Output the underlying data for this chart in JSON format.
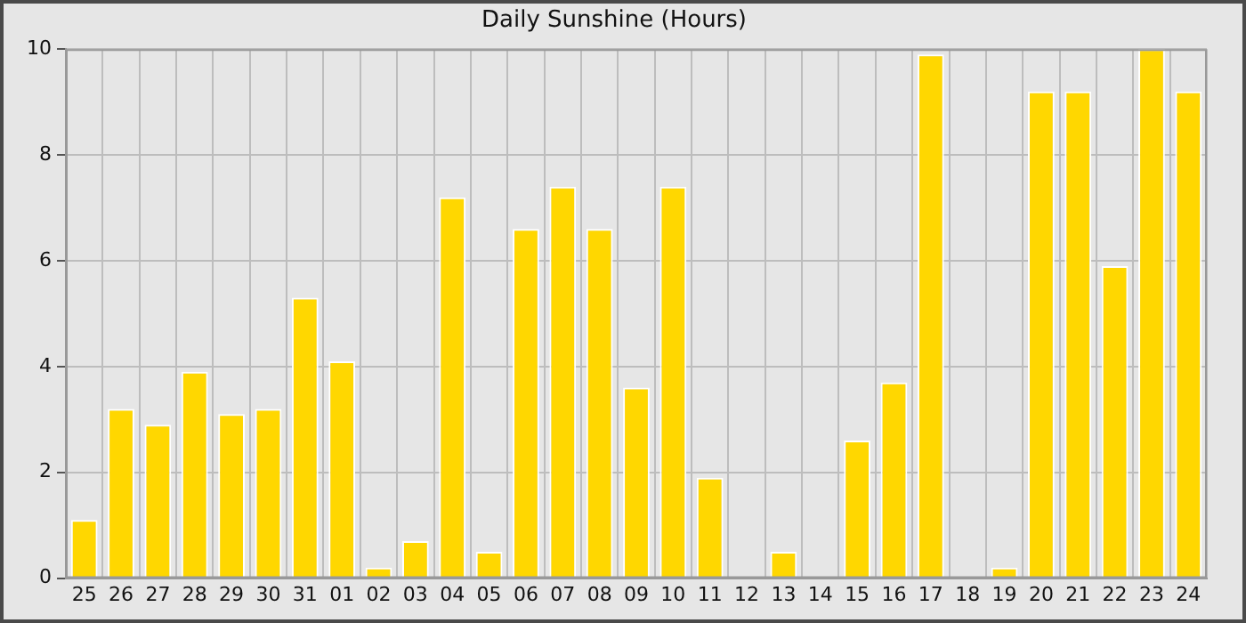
{
  "chart_data": {
    "type": "bar",
    "title": "Daily Sunshine (Hours)",
    "categories": [
      "25",
      "26",
      "27",
      "28",
      "29",
      "30",
      "31",
      "01",
      "02",
      "03",
      "04",
      "05",
      "06",
      "07",
      "08",
      "09",
      "10",
      "11",
      "12",
      "13",
      "14",
      "15",
      "16",
      "17",
      "18",
      "19",
      "20",
      "21",
      "22",
      "23",
      "24"
    ],
    "values": [
      1.1,
      3.2,
      2.9,
      3.9,
      3.1,
      3.2,
      5.3,
      4.1,
      0.2,
      0.7,
      7.2,
      0.5,
      6.6,
      7.4,
      6.6,
      3.6,
      7.4,
      1.9,
      0,
      0.5,
      0,
      2.6,
      3.7,
      9.9,
      0,
      0.2,
      9.2,
      9.2,
      5.9,
      10,
      9.2
    ],
    "color": "#ffd700",
    "ylim": [
      0,
      10
    ],
    "yticks": [
      0,
      2,
      4,
      6,
      8,
      10
    ],
    "grid": true
  }
}
